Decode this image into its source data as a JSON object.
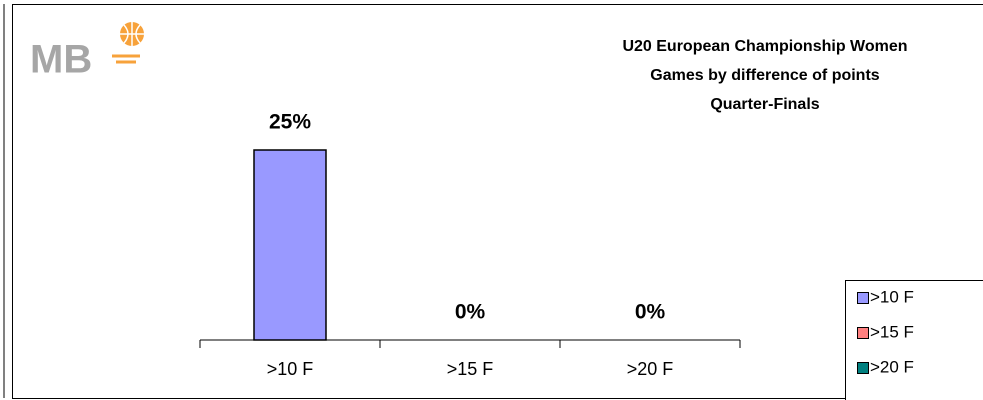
{
  "logo": "MB",
  "chart_data": {
    "type": "bar",
    "title": [
      "U20 European Championship Women",
      "Games by difference of points",
      "Quarter-Finals"
    ],
    "categories": [
      ">10 F",
      ">15 F",
      ">20 F"
    ],
    "values": [
      25,
      0,
      0
    ],
    "value_labels": [
      "25%",
      "0%",
      "0%"
    ],
    "colors": [
      "#9999ff",
      "#ff8080",
      "#008080"
    ],
    "legend": "right"
  }
}
